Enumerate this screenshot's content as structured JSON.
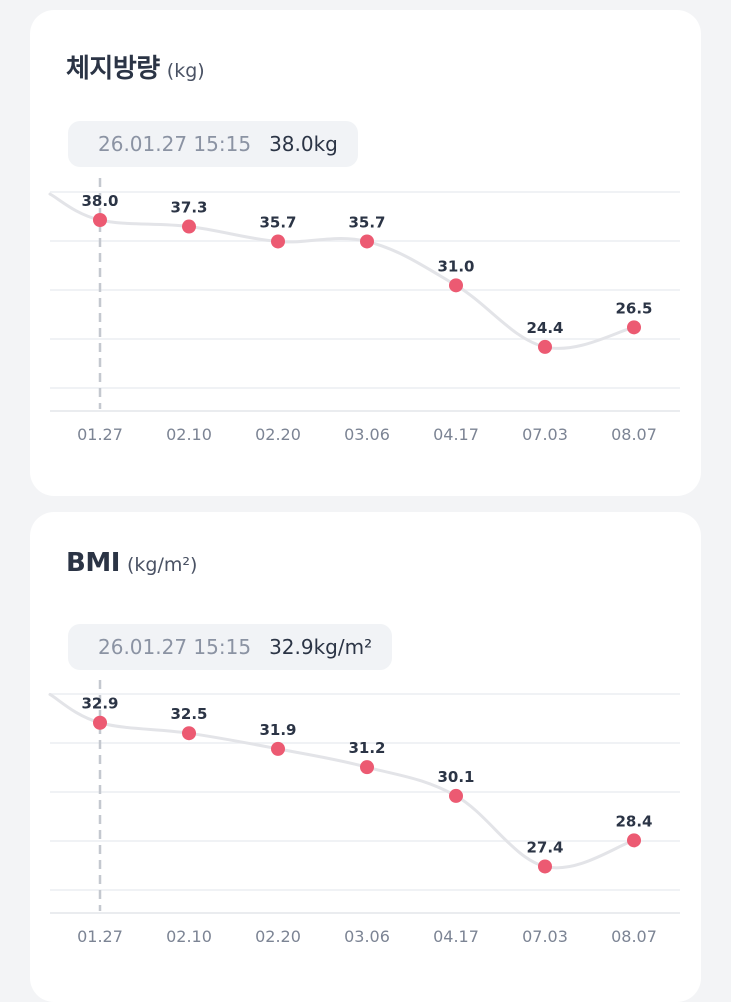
{
  "chart_data": [
    {
      "type": "line",
      "title": "체지방량",
      "unit": "(kg)",
      "tooltip": {
        "date": "26.01.27 15:15",
        "value": "38.0kg"
      },
      "categories": [
        "01.27",
        "02.10",
        "02.20",
        "03.06",
        "04.17",
        "07.03",
        "08.07"
      ],
      "values": [
        38.0,
        37.3,
        35.7,
        35.7,
        31.0,
        24.4,
        26.5
      ],
      "labels": [
        "38.0",
        "37.3",
        "35.7",
        "35.7",
        "31.0",
        "24.4",
        "26.5"
      ],
      "ylim": [
        20,
        41
      ],
      "grid": true,
      "selected_index": 0,
      "colors": {
        "line": "#e3e4e8",
        "marker": "#ec5a72",
        "grid": "#eceef2",
        "cursor": "#c4c8cf"
      }
    },
    {
      "type": "line",
      "title": "BMI",
      "unit": "(kg/m²)",
      "tooltip": {
        "date": "26.01.27 15:15",
        "value": "32.9kg/m²"
      },
      "categories": [
        "01.27",
        "02.10",
        "02.20",
        "03.06",
        "04.17",
        "07.03",
        "08.07"
      ],
      "values": [
        32.9,
        32.5,
        31.9,
        31.2,
        30.1,
        27.4,
        28.4
      ],
      "labels": [
        "32.9",
        "32.5",
        "31.9",
        "31.2",
        "30.1",
        "27.4",
        "28.4"
      ],
      "ylim": [
        26.5,
        34.0
      ],
      "grid": true,
      "selected_index": 0,
      "colors": {
        "line": "#e3e4e8",
        "marker": "#ec5a72",
        "grid": "#eceef2",
        "cursor": "#c4c8cf"
      }
    }
  ]
}
